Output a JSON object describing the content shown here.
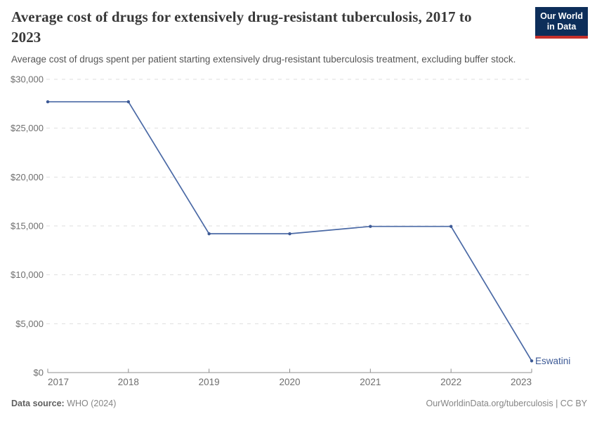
{
  "header": {
    "title": "Average cost of drugs for extensively drug-resistant tuberculosis, 2017 to 2023",
    "subtitle": "Average cost of drugs spent per patient starting extensively drug-resistant tuberculosis treatment, excluding buffer stock.",
    "logo": {
      "line1": "Our World",
      "line2": "in Data",
      "bg_color": "#0d2e5a",
      "accent_color": "#c5302b"
    }
  },
  "chart_data": {
    "type": "line",
    "title": "Average cost of drugs for extensively drug-resistant tuberculosis, 2017 to 2023",
    "x": [
      2017,
      2018,
      2019,
      2020,
      2021,
      2022,
      2023
    ],
    "series": [
      {
        "name": "Eswatini",
        "color": "#4a69a5",
        "marker_color": "#3d5a96",
        "values": [
          27700,
          27700,
          14200,
          14200,
          14950,
          14950,
          1200
        ]
      }
    ],
    "end_label": "Eswatini",
    "ylim": [
      0,
      30000
    ],
    "ytick_interval": 5000,
    "ytick_labels": [
      "$0",
      "$5,000",
      "$10,000",
      "$15,000",
      "$20,000",
      "$25,000",
      "$30,000"
    ],
    "grid": "horizontal-dashed",
    "grid_color": "#dedede",
    "axis_color": "#8f8f8f",
    "tick_label_color": "#6e6e6e",
    "legend_position": "end-of-line"
  },
  "footer": {
    "source_label": "Data source:",
    "source_value": " WHO (2024)",
    "link": "OurWorldinData.org/tuberculosis",
    "license": " | CC BY"
  }
}
